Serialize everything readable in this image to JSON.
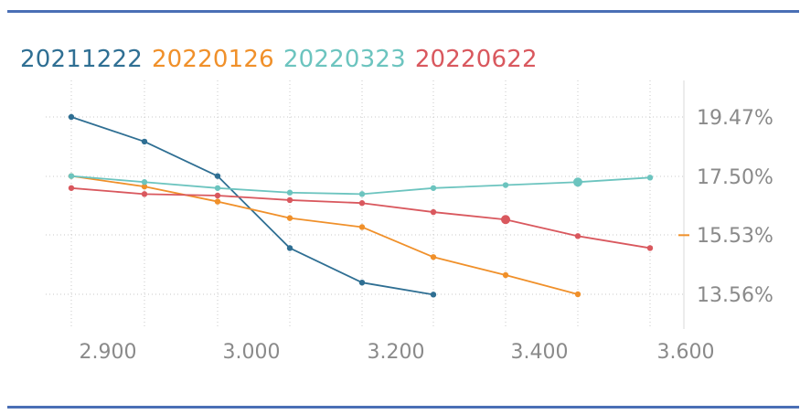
{
  "chart_data": {
    "type": "line",
    "title": "",
    "xlabel": "",
    "ylabel": "",
    "x_ticks": [
      "2.900",
      "3.000",
      "3.200",
      "3.400",
      "3.600"
    ],
    "y_ticks": [
      "19.47%",
      "17.50%",
      "15.53%",
      "13.56%"
    ],
    "legend_position": "top-left",
    "grid": true,
    "series": [
      {
        "name": "20211222",
        "color": "#2f6f93",
        "points": [
          [
            2.9,
            19.47
          ],
          [
            3.0,
            18.65
          ],
          [
            3.1,
            17.5
          ],
          [
            3.2,
            15.1
          ],
          [
            3.3,
            13.95
          ],
          [
            3.4,
            13.55
          ]
        ]
      },
      {
        "name": "20220126",
        "color": "#f0902a",
        "points": [
          [
            2.9,
            17.5
          ],
          [
            3.0,
            17.15
          ],
          [
            3.1,
            16.65
          ],
          [
            3.2,
            16.1
          ],
          [
            3.3,
            15.8
          ],
          [
            3.4,
            14.8
          ],
          [
            3.5,
            14.2
          ],
          [
            3.6,
            13.56
          ]
        ]
      },
      {
        "name": "20220323",
        "color": "#6cc4bf",
        "points": [
          [
            2.9,
            17.5
          ],
          [
            3.0,
            17.3
          ],
          [
            3.1,
            17.1
          ],
          [
            3.2,
            16.95
          ],
          [
            3.3,
            16.9
          ],
          [
            3.4,
            17.1
          ],
          [
            3.5,
            17.2
          ],
          [
            3.6,
            17.3
          ],
          [
            3.7,
            17.45
          ]
        ]
      },
      {
        "name": "20220622",
        "color": "#d9585e",
        "points": [
          [
            2.9,
            17.1
          ],
          [
            3.0,
            16.9
          ],
          [
            3.1,
            16.85
          ],
          [
            3.2,
            16.7
          ],
          [
            3.3,
            16.6
          ],
          [
            3.4,
            16.3
          ],
          [
            3.5,
            16.05
          ],
          [
            3.6,
            15.5
          ],
          [
            3.7,
            15.1
          ]
        ]
      }
    ],
    "highlighted_points": [
      {
        "series": "20220323",
        "x": 3.6,
        "y": 17.3
      },
      {
        "series": "20220622",
        "x": 3.5,
        "y": 16.05
      }
    ],
    "side_marker": {
      "y": 15.53,
      "color": "#f0902a"
    }
  }
}
